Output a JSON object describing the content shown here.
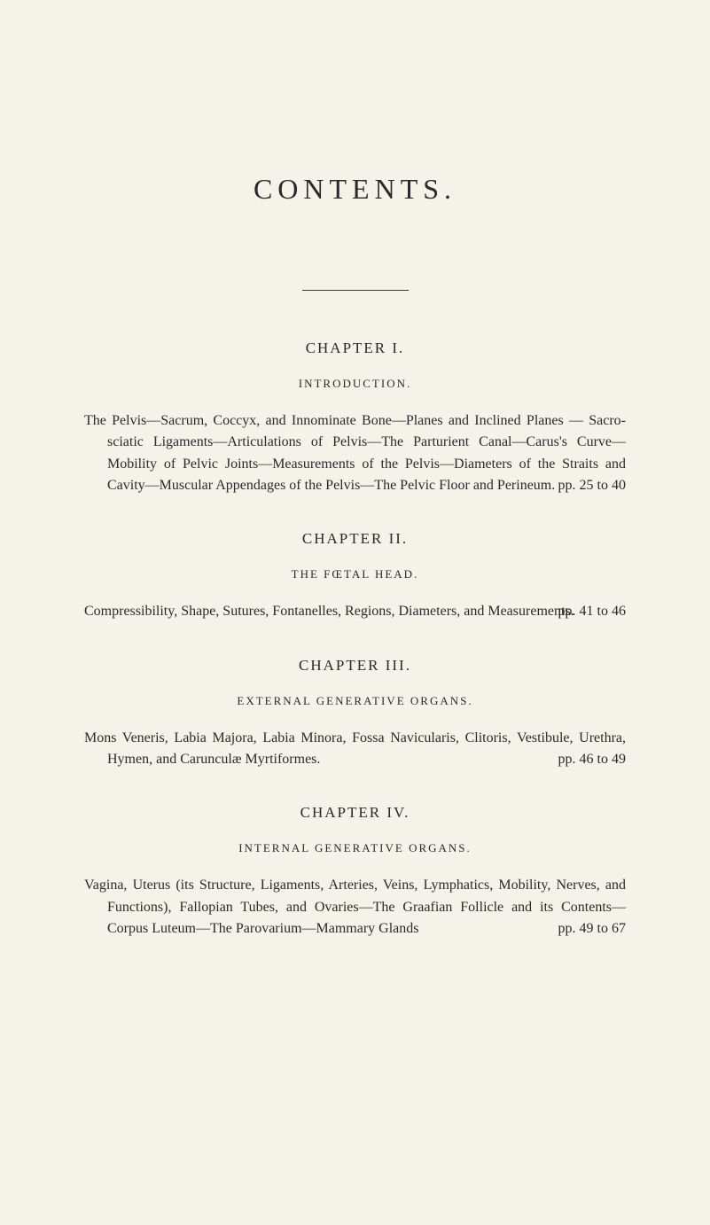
{
  "page": {
    "title": "CONTENTS.",
    "background_color": "#f5f2ea",
    "text_color": "#2a2a2a",
    "body_fontsize": 16,
    "title_fontsize": 32,
    "heading_fontsize": 17,
    "subtitle_fontsize": 13
  },
  "chapters": [
    {
      "heading": "CHAPTER I.",
      "subtitle": "INTRODUCTION.",
      "body": "The Pelvis—Sacrum, Coccyx, and Innominate Bone—Planes and Inclined Planes — Sacro-sciatic Ligaments—Articulations of Pelvis—The Parturient Canal—Carus's Curve—Mobility of Pelvic Joints—Measurements of the Pelvis—Diameters of the Straits and Cavity—Muscular Appendages of the Pelvis—The Pelvic Floor and Perineum.",
      "page_range": "pp. 25 to 40"
    },
    {
      "heading": "CHAPTER II.",
      "subtitle": "THE FŒTAL HEAD.",
      "body": "Compressibility, Shape, Sutures, Fontanelles, Regions, Diameters, and Measurements.",
      "page_range": "pp. 41 to 46"
    },
    {
      "heading": "CHAPTER III.",
      "subtitle": "EXTERNAL GENERATIVE ORGANS.",
      "body": "Mons Veneris, Labia Majora, Labia Minora, Fossa Navicularis, Clitoris, Vestibule, Urethra, Hymen, and Carunculæ Myrtiformes.",
      "page_range": "pp. 46 to 49"
    },
    {
      "heading": "CHAPTER IV.",
      "subtitle": "INTERNAL GENERATIVE ORGANS.",
      "body": "Vagina, Uterus (its Structure, Ligaments, Arteries, Veins, Lymphatics, Mobility, Nerves, and Functions), Fallopian Tubes, and Ovaries—The Graafian Follicle and its Contents—Corpus Luteum—The Parovarium—Mammary Glands",
      "page_range": "pp. 49 to 67"
    }
  ]
}
